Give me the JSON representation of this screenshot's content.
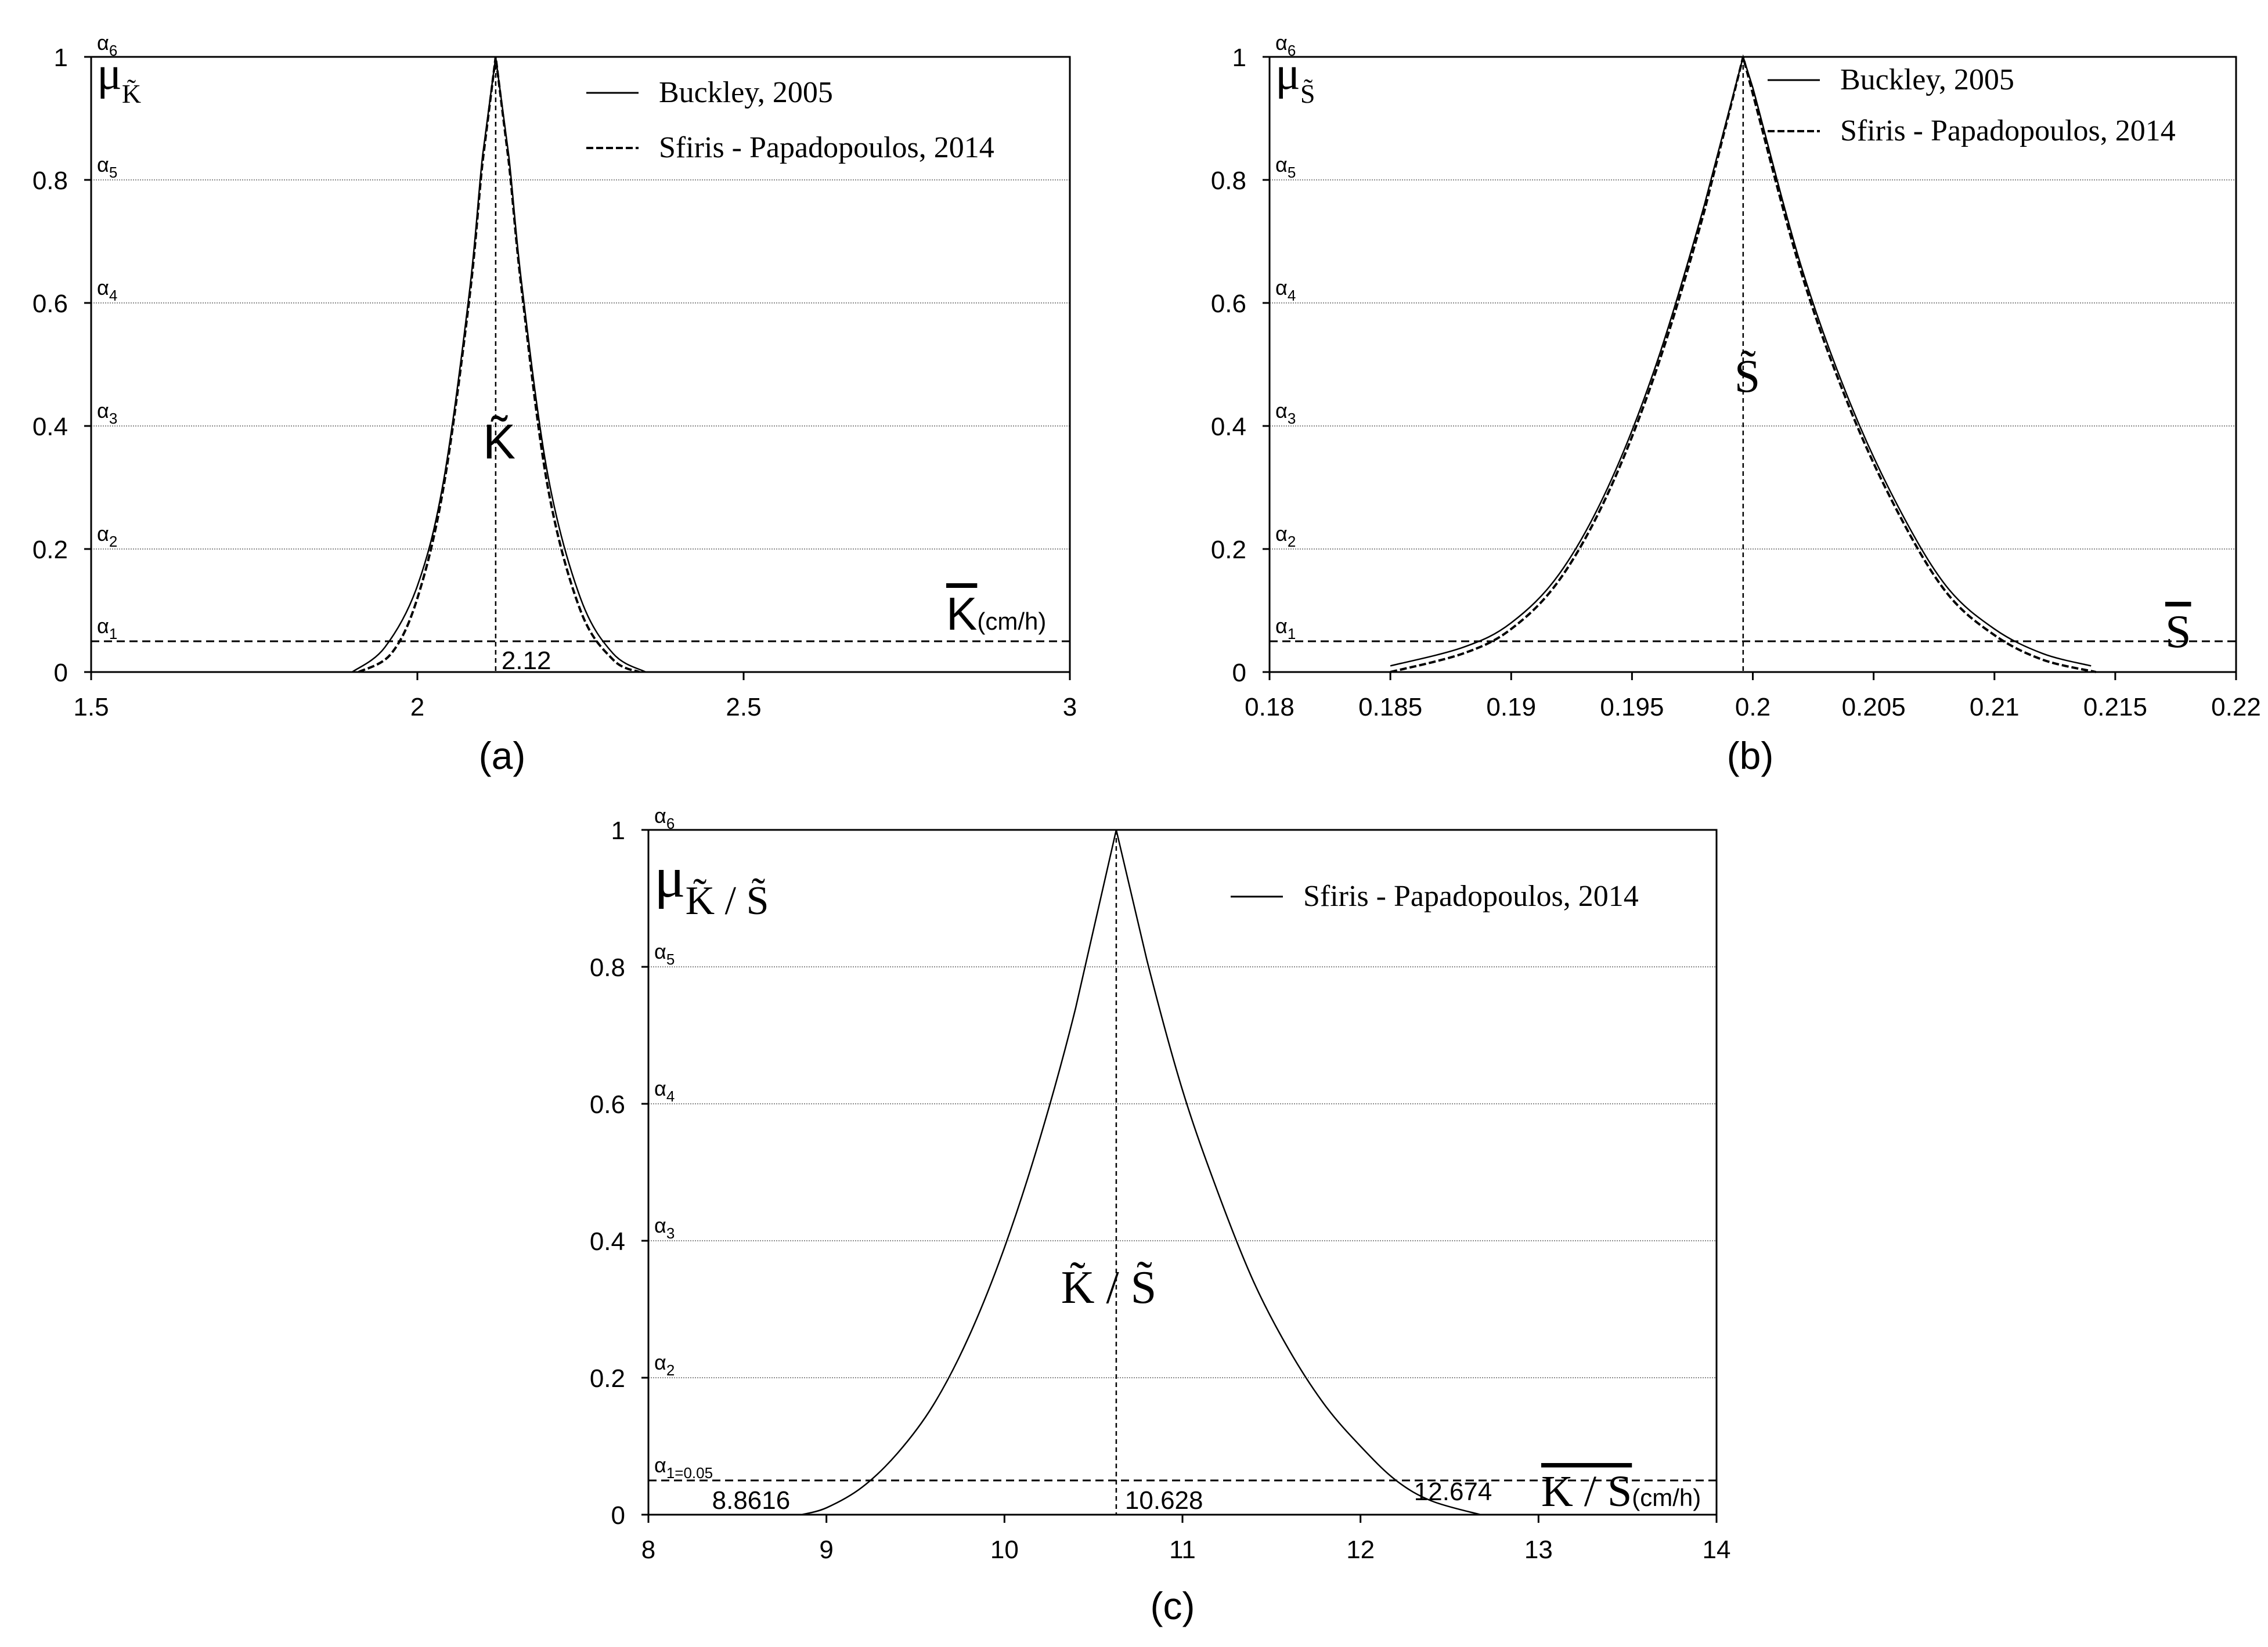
{
  "chart_data": [
    {
      "panel_label": "(a)",
      "type": "line",
      "xlim": [
        1.5,
        3
      ],
      "ylim": [
        0,
        1
      ],
      "xticks": [
        1.5,
        2,
        2.5,
        3
      ],
      "yticks": [
        0,
        0.2,
        0.4,
        0.6,
        0.8,
        1
      ],
      "xtick_labels": [
        "1.5",
        "2",
        "2.5",
        "3"
      ],
      "ytick_labels": [
        "0",
        "0.2",
        "0.4",
        "0.6",
        "0.8",
        "1"
      ],
      "ylabel": {
        "mu": "μ",
        "sub": "K̃"
      },
      "xlabel": {
        "main": "K",
        "unit": "(cm/h)",
        "overbar": true
      },
      "alpha_levels": [
        {
          "label": "α",
          "sub": "1",
          "y": 0.05
        },
        {
          "label": "α",
          "sub": "2",
          "y": 0.2
        },
        {
          "label": "α",
          "sub": "3",
          "y": 0.4
        },
        {
          "label": "α",
          "sub": "4",
          "y": 0.6
        },
        {
          "label": "α",
          "sub": "5",
          "y": 0.8
        },
        {
          "label": "α",
          "sub": "6",
          "y": 1.0
        }
      ],
      "center_annotation": "K̃",
      "peak": 2.12,
      "value_labels": [
        {
          "text": "2.12",
          "x": 2.12
        }
      ],
      "legend": {
        "position": "top-right",
        "entries": [
          {
            "name": "Buckley, 2005",
            "style": "solid"
          },
          {
            "name": "Sfiris - Papadopoulos, 2014",
            "style": "dashed"
          }
        ]
      },
      "series": [
        {
          "name": "Buckley, 2005",
          "style": "solid",
          "x": [
            1.9,
            1.95,
            2.0,
            2.04,
            2.08,
            2.1,
            2.12,
            2.14,
            2.16,
            2.2,
            2.25,
            2.3,
            2.35
          ],
          "y": [
            0.0,
            0.04,
            0.14,
            0.31,
            0.62,
            0.84,
            1.0,
            0.84,
            0.63,
            0.32,
            0.12,
            0.03,
            0.0
          ]
        },
        {
          "name": "Sfiris - Papadopoulos, 2014",
          "style": "dashed",
          "x": [
            1.91,
            1.96,
            2.0,
            2.04,
            2.08,
            2.1,
            2.12,
            2.14,
            2.16,
            2.2,
            2.25,
            2.3,
            2.34
          ],
          "y": [
            0.0,
            0.03,
            0.12,
            0.3,
            0.61,
            0.83,
            1.0,
            0.83,
            0.62,
            0.3,
            0.1,
            0.02,
            0.0
          ]
        }
      ]
    },
    {
      "panel_label": "(b)",
      "type": "line",
      "xlim": [
        0.18,
        0.22
      ],
      "ylim": [
        0,
        1
      ],
      "xticks": [
        0.18,
        0.185,
        0.19,
        0.195,
        0.2,
        0.205,
        0.21,
        0.215,
        0.22
      ],
      "yticks": [
        0,
        0.2,
        0.4,
        0.6,
        0.8,
        1
      ],
      "xtick_labels": [
        "0.18",
        "0.185",
        "0.19",
        "0.195",
        "0.2",
        "0.205",
        "0.21",
        "0.215",
        "0.22"
      ],
      "ytick_labels": [
        "0",
        "0.2",
        "0.4",
        "0.6",
        "0.8",
        "1"
      ],
      "ylabel": {
        "mu": "μ",
        "sub": "S̃"
      },
      "xlabel": {
        "main": "S",
        "unit": "",
        "overbar": true
      },
      "alpha_levels": [
        {
          "label": "α",
          "sub": "1",
          "y": 0.05
        },
        {
          "label": "α",
          "sub": "2",
          "y": 0.2
        },
        {
          "label": "α",
          "sub": "3",
          "y": 0.4
        },
        {
          "label": "α",
          "sub": "4",
          "y": 0.6
        },
        {
          "label": "α",
          "sub": "5",
          "y": 0.8
        },
        {
          "label": "α",
          "sub": "6",
          "y": 1.0
        }
      ],
      "center_annotation": "S̃",
      "peak": 0.1996,
      "value_labels": [],
      "legend": {
        "position": "top-right",
        "entries": [
          {
            "name": "Buckley, 2005",
            "style": "solid"
          },
          {
            "name": "Sfiris - Papadopoulos, 2014",
            "style": "dashed"
          }
        ]
      },
      "series": [
        {
          "name": "Buckley, 2005",
          "style": "solid",
          "x": [
            0.185,
            0.188,
            0.19,
            0.192,
            0.194,
            0.196,
            0.198,
            0.1996,
            0.2,
            0.202,
            0.204,
            0.206,
            0.208,
            0.21,
            0.212,
            0.214
          ],
          "y": [
            0.01,
            0.04,
            0.08,
            0.16,
            0.3,
            0.5,
            0.76,
            1.0,
            0.95,
            0.66,
            0.44,
            0.27,
            0.14,
            0.07,
            0.03,
            0.01
          ]
        },
        {
          "name": "Sfiris - Papadopoulos, 2014",
          "style": "dashed",
          "x": [
            0.185,
            0.188,
            0.19,
            0.192,
            0.194,
            0.196,
            0.198,
            0.1996,
            0.2,
            0.202,
            0.204,
            0.206,
            0.208,
            0.21,
            0.212,
            0.2142
          ],
          "y": [
            0.0,
            0.03,
            0.07,
            0.15,
            0.29,
            0.49,
            0.75,
            1.0,
            0.94,
            0.65,
            0.43,
            0.26,
            0.13,
            0.06,
            0.02,
            0.0
          ]
        }
      ]
    },
    {
      "panel_label": "(c)",
      "type": "line",
      "xlim": [
        8,
        14
      ],
      "ylim": [
        0,
        1
      ],
      "xticks": [
        8,
        9,
        10,
        11,
        12,
        13,
        14
      ],
      "yticks": [
        0,
        0.2,
        0.4,
        0.6,
        0.8,
        1
      ],
      "xtick_labels": [
        "8",
        "9",
        "10",
        "11",
        "12",
        "13",
        "14"
      ],
      "ytick_labels": [
        "0",
        "0.2",
        "0.4",
        "0.6",
        "0.8",
        "1"
      ],
      "ylabel": {
        "mu": "μ",
        "sub": "K̃ / S̃"
      },
      "xlabel": {
        "main": "K / S",
        "unit": "(cm/h)",
        "overbar": true
      },
      "alpha_levels": [
        {
          "label": "α",
          "sub": "1=0.05",
          "y": 0.05
        },
        {
          "label": "α",
          "sub": "2",
          "y": 0.2
        },
        {
          "label": "α",
          "sub": "3",
          "y": 0.4
        },
        {
          "label": "α",
          "sub": "4",
          "y": 0.6
        },
        {
          "label": "α",
          "sub": "5",
          "y": 0.8
        },
        {
          "label": "α",
          "sub": "6",
          "y": 1.0
        }
      ],
      "center_annotation": "K̃ / S̃",
      "peak": 10.628,
      "value_labels": [
        {
          "text": "8.8616",
          "x": 8.8616
        },
        {
          "text": "10.628",
          "x": 10.628
        },
        {
          "text": "12.674",
          "x": 12.674
        }
      ],
      "legend": {
        "position": "top-right",
        "entries": [
          {
            "name": "Sfiris - Papadopoulos, 2014",
            "style": "solid"
          }
        ]
      },
      "series": [
        {
          "name": "Sfiris - Papadopoulos, 2014",
          "style": "solid",
          "x": [
            8.86,
            9.0,
            9.2,
            9.4,
            9.6,
            9.8,
            10.0,
            10.2,
            10.4,
            10.628,
            10.8,
            11.0,
            11.2,
            11.4,
            11.6,
            11.8,
            12.0,
            12.2,
            12.4,
            12.674
          ],
          "y": [
            0.0,
            0.01,
            0.04,
            0.09,
            0.16,
            0.26,
            0.39,
            0.55,
            0.74,
            1.0,
            0.81,
            0.62,
            0.47,
            0.34,
            0.24,
            0.16,
            0.1,
            0.05,
            0.02,
            0.0
          ]
        }
      ]
    }
  ]
}
